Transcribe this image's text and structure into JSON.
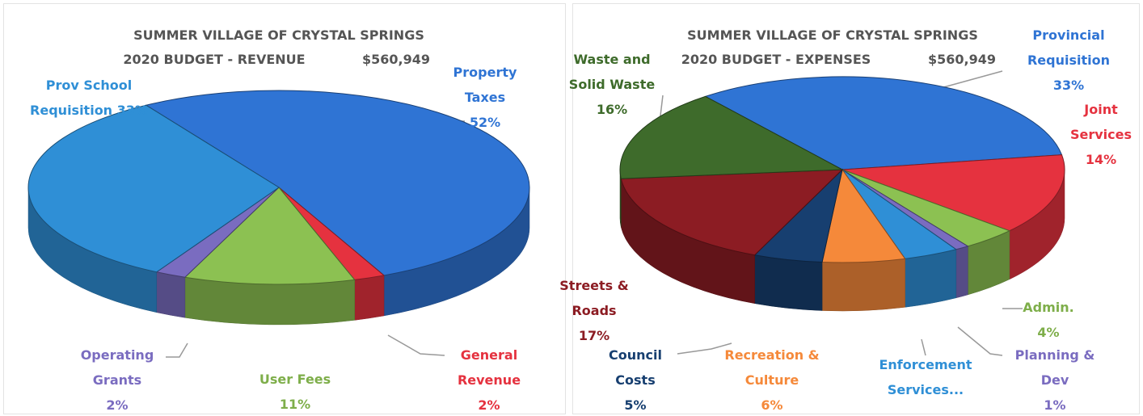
{
  "chart_data": [
    {
      "type": "pie",
      "title": "SUMMER VILLAGE OF CRYSTAL SPRINGS",
      "subtitle": "2020 BUDGET - REVENUE",
      "total": "$560,949",
      "categories": [
        "Property Taxes",
        "General Revenue",
        "User Fees",
        "Operating Grants",
        "Prov School Requisition"
      ],
      "values": [
        52,
        2,
        11,
        2,
        33
      ],
      "value_labels": [
        "52%",
        "2%",
        "11%",
        "2%",
        "33%"
      ],
      "colors": [
        "#2f74d4",
        "#e5323f",
        "#8cc152",
        "#7a6cc0",
        "#2f8fd6"
      ]
    },
    {
      "type": "pie",
      "title": "SUMMER VILLAGE OF CRYSTAL SPRINGS",
      "subtitle": "2020 BUDGET - EXPENSES",
      "total": "$560,949",
      "categories": [
        "Provincial Requisition",
        "Joint Services",
        "Admin.",
        "Planning & Dev",
        "Enforcement Services...",
        "Recreation & Culture",
        "Council Costs",
        "Streets & Roads",
        "Waste and Solid Waste"
      ],
      "values": [
        33,
        14,
        4,
        1,
        4,
        6,
        5,
        17,
        16
      ],
      "value_labels": [
        "33%",
        "14%",
        "4%",
        "1%",
        null,
        "6%",
        "5%",
        "17%",
        "16%"
      ],
      "colors": [
        "#2f74d4",
        "#e5323f",
        "#8cc152",
        "#7a6cc0",
        "#2f8fd6",
        "#f5893a",
        "#173f70",
        "#8c1c23",
        "#3e6b2b"
      ]
    }
  ]
}
